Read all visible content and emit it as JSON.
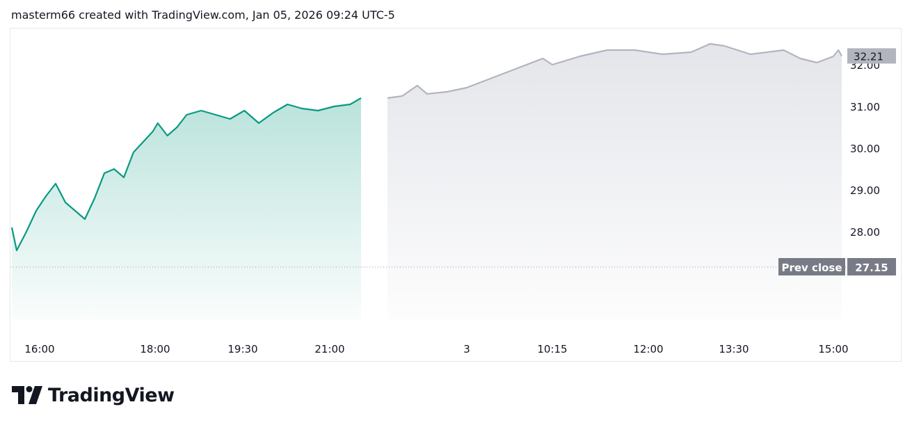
{
  "header": {
    "text": "masterm66 created with TradingView.com, Jan 05, 2026 09:24 UTC-5"
  },
  "brand": {
    "name": "TradingView"
  },
  "colors": {
    "session_line": "#089981",
    "extended_line": "#b2b5be",
    "last_price_bg": "#b2b5be",
    "prev_close_bg": "#787b86"
  },
  "chart_data": {
    "type": "area",
    "y_ticks": [
      "28.00",
      "29.00",
      "30.00",
      "31.00",
      "32.00"
    ],
    "y_range": [
      27.15,
      32.45
    ],
    "x_tick_labels": [
      "16:00",
      "18:00",
      "19:30",
      "21:00",
      "3",
      "10:15",
      "12:00",
      "13:30",
      "15:00"
    ],
    "last_price": "32.21",
    "prev_close": {
      "label": "Prev close",
      "value": "27.15"
    },
    "series": [
      {
        "session": "regular",
        "points": [
          [
            "16:00",
            28.1
          ],
          [
            "16:05",
            27.55
          ],
          [
            "16:15",
            28.0
          ],
          [
            "16:25",
            28.5
          ],
          [
            "16:35",
            28.85
          ],
          [
            "16:45",
            29.15
          ],
          [
            "16:55",
            28.7
          ],
          [
            "17:05",
            28.5
          ],
          [
            "17:15",
            28.3
          ],
          [
            "17:25",
            28.8
          ],
          [
            "17:35",
            29.4
          ],
          [
            "17:45",
            29.5
          ],
          [
            "17:55",
            29.3
          ],
          [
            "18:05",
            29.9
          ],
          [
            "18:15",
            30.15
          ],
          [
            "18:25",
            30.4
          ],
          [
            "18:30",
            30.6
          ],
          [
            "18:40",
            30.3
          ],
          [
            "18:50",
            30.5
          ],
          [
            "19:00",
            30.8
          ],
          [
            "19:15",
            30.9
          ],
          [
            "19:30",
            30.8
          ],
          [
            "19:45",
            30.7
          ],
          [
            "20:00",
            30.9
          ],
          [
            "20:15",
            30.6
          ],
          [
            "20:30",
            30.85
          ],
          [
            "20:45",
            31.05
          ],
          [
            "21:00",
            30.95
          ],
          [
            "21:15",
            30.9
          ],
          [
            "21:30",
            31.0
          ],
          [
            "21:45",
            31.05
          ],
          [
            "21:55",
            31.2
          ]
        ]
      },
      {
        "session": "extended",
        "points": [
          [
            "04:00",
            31.2
          ],
          [
            "04:45",
            31.25
          ],
          [
            "05:30",
            31.5
          ],
          [
            "06:00",
            31.3
          ],
          [
            "07:00",
            31.35
          ],
          [
            "08:00",
            31.45
          ],
          [
            "10:00",
            32.15
          ],
          [
            "10:15",
            32.0
          ],
          [
            "10:45",
            32.2
          ],
          [
            "11:15",
            32.35
          ],
          [
            "11:45",
            32.35
          ],
          [
            "12:15",
            32.25
          ],
          [
            "12:45",
            32.3
          ],
          [
            "13:05",
            32.5
          ],
          [
            "13:20",
            32.45
          ],
          [
            "13:45",
            32.25
          ],
          [
            "14:15",
            32.35
          ],
          [
            "14:30",
            32.15
          ],
          [
            "14:45",
            32.05
          ],
          [
            "15:00",
            32.2
          ],
          [
            "15:15",
            32.35
          ],
          [
            "15:25",
            32.21
          ]
        ]
      }
    ]
  }
}
